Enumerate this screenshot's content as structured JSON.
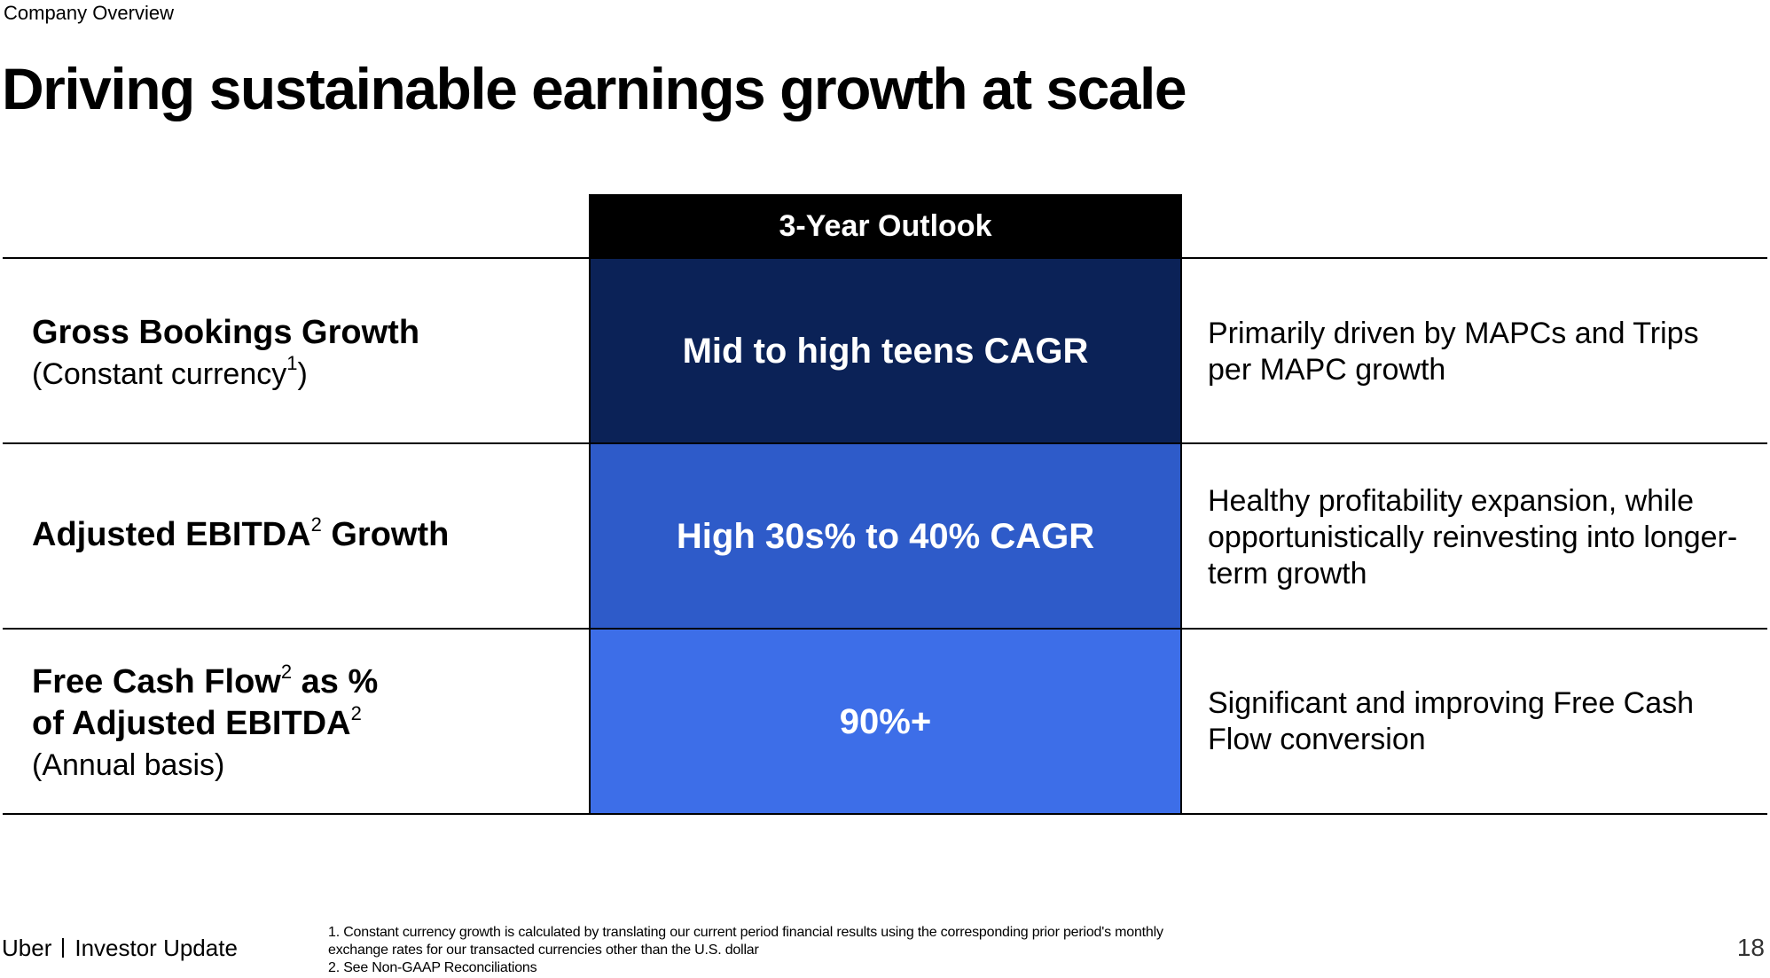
{
  "header": {
    "section_label": "Company Overview",
    "title": "Driving sustainable earnings growth at scale"
  },
  "table": {
    "column_header": "3-Year Outlook",
    "rows": [
      {
        "label_line1": "Gross Bookings Growth",
        "label_sub": "(Constant currency",
        "label_sub_sup": "1",
        "label_sub_close": ")",
        "outlook": "Mid to high teens CAGR",
        "description": "Primarily driven by MAPCs and Trips per MAPC growth"
      },
      {
        "label_main": "Adjusted EBITDA",
        "label_sup": "2",
        "label_main_end": " Growth",
        "outlook": "High 30s% to 40% CAGR",
        "description": "Healthy profitability expansion, while opportunistically reinvesting into longer-term growth"
      },
      {
        "label_line1_a": "Free Cash Flow",
        "label_line1_sup": "2",
        "label_line1_b": " as %",
        "label_line2": "of Adjusted EBITDA",
        "label_line2_sup": "2",
        "label_sub": "(Annual basis)",
        "outlook": "90%+",
        "description": "Significant and improving Free Cash Flow conversion"
      }
    ],
    "colors": {
      "row1": "#0b2257",
      "row2": "#2e5bc9",
      "row3": "#3d6ee8",
      "header": "#000000"
    }
  },
  "footer": {
    "brand": "Uber",
    "brand_sub": "Investor Update",
    "footnote1": "1. Constant currency growth is calculated by translating our current period financial results using the corresponding prior period's monthly exchange rates for our transacted currencies other than the U.S. dollar",
    "footnote2": "2. See Non-GAAP Reconciliations",
    "page_number": "18"
  }
}
